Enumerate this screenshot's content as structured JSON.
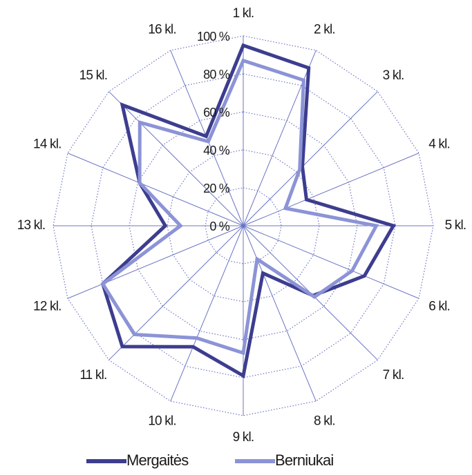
{
  "chart_data": {
    "type": "radar",
    "categories": [
      "1 kl.",
      "2 kl.",
      "3 kl.",
      "4 kl.",
      "5 kl.",
      "6 kl.",
      "7 kl.",
      "8 kl.",
      "9 kl.",
      "10 kl.",
      "11 kl.",
      "12 kl.",
      "13 kl.",
      "14 kl.",
      "15 kl.",
      "16 kl."
    ],
    "series": [
      {
        "name": "Mergaitės",
        "color": "#3d3d8f",
        "values": [
          95,
          90,
          44,
          36,
          79,
          69,
          52,
          27,
          79,
          69,
          90,
          80,
          41,
          59,
          90,
          51
        ]
      },
      {
        "name": "Berniukai",
        "color": "#8c93d6",
        "values": [
          87,
          83,
          42,
          24,
          70,
          62,
          53,
          19,
          67,
          64,
          81,
          80,
          33,
          59,
          77,
          48
        ]
      }
    ],
    "ylim": [
      0,
      100
    ],
    "yticks": [
      {
        "value": 0,
        "label": "0 %"
      },
      {
        "value": 20,
        "label": "20 %"
      },
      {
        "value": 40,
        "label": "40 %"
      },
      {
        "value": 60,
        "label": "60 %"
      },
      {
        "value": 80,
        "label": "80 %"
      },
      {
        "value": 100,
        "label": "100 %"
      }
    ],
    "grid": true,
    "legend": "bottom"
  }
}
